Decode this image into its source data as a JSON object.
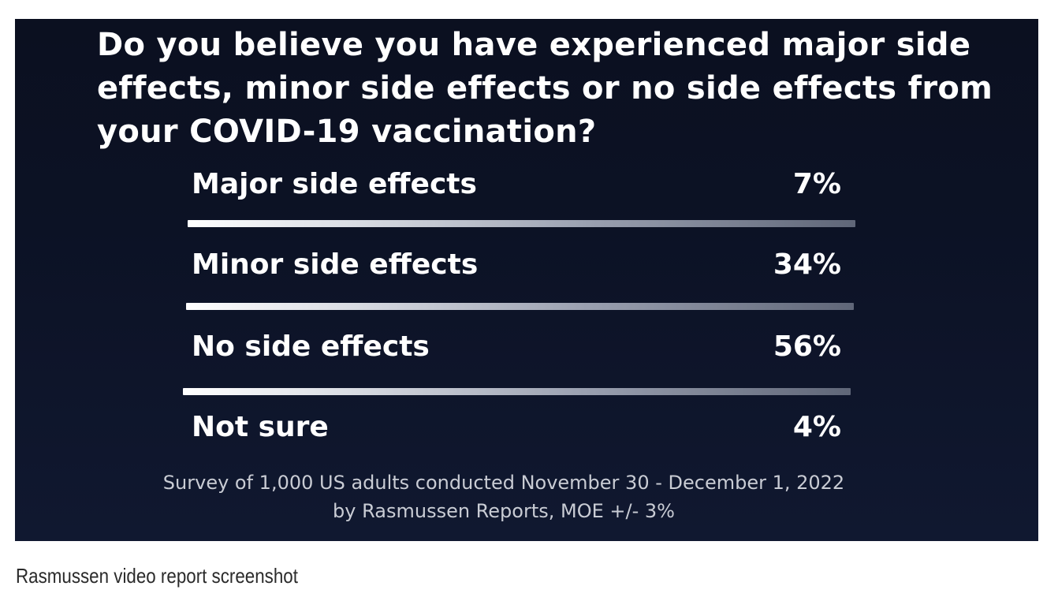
{
  "chart_data": {
    "type": "table",
    "title": "Do you believe you have experienced major side effects, minor side effects or no side effects from your COVID-19 vaccination?",
    "categories": [
      "Major side effects",
      "Minor side effects",
      "No side effects",
      "Not sure"
    ],
    "values": [
      7,
      34,
      56,
      4
    ],
    "value_labels": [
      "7%",
      "34%",
      "56%",
      "4%"
    ],
    "footnote": [
      "Survey of 1,000 US adults conducted November 30 - December 1, 2022",
      "by Rasmussen Reports, MOE +/- 3%"
    ]
  },
  "caption": "Rasmussen video report screenshot",
  "colors": {
    "background": "#0c1225",
    "text": "#ffffff",
    "footnote_text": "#c9ccd4",
    "caption_text": "#2b2b2b"
  }
}
